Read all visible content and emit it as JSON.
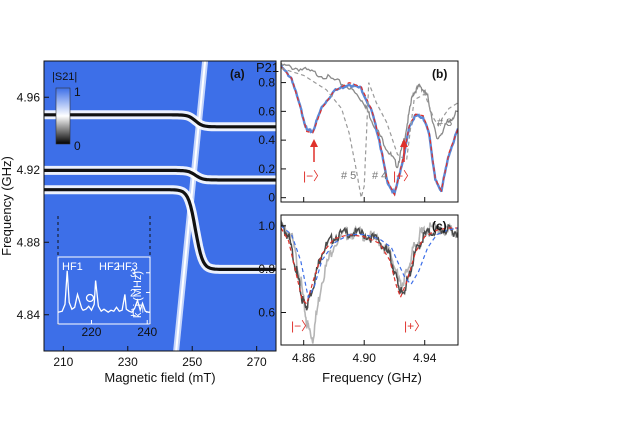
{
  "chart_data": [
    {
      "panel": "(a)",
      "type": "heatmap",
      "xlabel": "Magnetic field (mT)",
      "ylabel": "Frequency (GHz)",
      "xlim": [
        204,
        276
      ],
      "ylim": [
        4.82,
        4.98
      ],
      "xticks": [
        "210",
        "230",
        "250",
        "270"
      ],
      "yticks": [
        "4.84",
        "4.88",
        "4.92",
        "4.96"
      ],
      "colorbar": {
        "label": "|S21|",
        "max_label": "1",
        "min_label": "0",
        "colors": [
          "#3d6fe8",
          "#ffffff",
          "#000000"
        ]
      },
      "features": [
        {
          "name": "mode",
          "f0": 4.947,
          "couples_at_field": 251,
          "gap": 0.0015
        },
        {
          "name": "mode",
          "f0": 4.917,
          "couples_at_field": 251,
          "gap": 0.0012
        },
        {
          "name": "mode",
          "f0": 4.887,
          "couples_at_field": 251,
          "gap": 0.01
        }
      ],
      "spin_line": {
        "field_at_4_82": 245,
        "field_at_4_98": 254
      },
      "inset": {
        "peak_labels": [
          "HF1",
          "HF2",
          "HF3"
        ],
        "xticks": [
          "220",
          "240"
        ],
        "yticks": [
          "1",
          "2",
          "3"
        ],
        "ylabel": "k_i (MHz)",
        "xlim": [
          208,
          241
        ],
        "ylim": [
          0.4,
          3.8
        ],
        "x": [
          208,
          209.5,
          210.5,
          211.3,
          212,
          213,
          214,
          215,
          216.5,
          217,
          218,
          219,
          220,
          221,
          221.5,
          222.5,
          223.5,
          224.5,
          226,
          227,
          228,
          229,
          230,
          231,
          232,
          232.5,
          233.5,
          234.5,
          235.5,
          236.5,
          237.5,
          238.3,
          239.3,
          240.5,
          241
        ],
        "y": [
          1.0,
          1.05,
          1.4,
          3.1,
          1.5,
          1.15,
          1.25,
          1.9,
          1.2,
          1.1,
          1.15,
          1.3,
          1.1,
          1.4,
          2.6,
          1.3,
          1.05,
          1.15,
          1.0,
          1.1,
          1.05,
          1.25,
          1.05,
          1.1,
          1.9,
          1.15,
          1.05,
          1.0,
          1.2,
          1.6,
          1.1,
          1.45,
          1.05,
          1.0,
          1.0
        ]
      }
    },
    {
      "panel": "(b)",
      "type": "line",
      "ylabel": "P21",
      "xlim": [
        4.845,
        4.962
      ],
      "ylim": [
        -0.03,
        0.95
      ],
      "yticks": [
        "0",
        "0.2",
        "0.4",
        "0.6",
        "0.8"
      ],
      "annotations": {
        "minus": "|−〉",
        "plus": "|+〉",
        "g5": "# 5",
        "g4": "# 4",
        "g3": "# 3"
      },
      "series": [
        {
          "style": "gray-noisy",
          "x": [
            4.845,
            4.86,
            4.875,
            4.89,
            4.9,
            4.905,
            4.915,
            4.922,
            4.927,
            4.932,
            4.937,
            4.942,
            4.948,
            4.955,
            4.962
          ],
          "y": [
            0.92,
            0.89,
            0.84,
            0.77,
            0.66,
            0.54,
            0.34,
            0.22,
            0.43,
            0.72,
            0.78,
            0.7,
            0.4,
            0.52,
            0.6
          ]
        },
        {
          "style": "blue",
          "x": [
            4.845,
            4.852,
            4.858,
            4.862,
            4.866,
            4.872,
            4.88,
            4.89,
            4.898,
            4.905,
            4.91,
            4.915,
            4.92,
            4.926,
            4.93,
            4.934,
            4.939,
            4.943,
            4.947,
            4.951,
            4.956,
            4.962
          ],
          "y": [
            0.91,
            0.83,
            0.62,
            0.47,
            0.46,
            0.63,
            0.74,
            0.79,
            0.76,
            0.6,
            0.4,
            0.12,
            0.02,
            0.28,
            0.5,
            0.57,
            0.56,
            0.44,
            0.12,
            0.05,
            0.3,
            0.48
          ]
        },
        {
          "style": "red-dash",
          "x": [
            4.845,
            4.852,
            4.858,
            4.862,
            4.866,
            4.872,
            4.88,
            4.89,
            4.898,
            4.905,
            4.91,
            4.915,
            4.92,
            4.926,
            4.93,
            4.934,
            4.939,
            4.943,
            4.947,
            4.951,
            4.956,
            4.962
          ],
          "y": [
            0.91,
            0.83,
            0.62,
            0.46,
            0.45,
            0.62,
            0.74,
            0.8,
            0.77,
            0.61,
            0.41,
            0.13,
            0.02,
            0.29,
            0.51,
            0.58,
            0.57,
            0.45,
            0.13,
            0.05,
            0.31,
            0.48
          ]
        },
        {
          "style": "gray-dash",
          "x": [
            4.845,
            4.86,
            4.875,
            4.885,
            4.89,
            4.895,
            4.898,
            4.9,
            4.903,
            4.908,
            4.915,
            4.922,
            4.928,
            4.933,
            4.94,
            4.946,
            4.949,
            4.952,
            4.956,
            4.962
          ],
          "y": [
            0.9,
            0.85,
            0.75,
            0.62,
            0.45,
            0.18,
            0.0,
            0.08,
            0.8,
            0.66,
            0.52,
            0.3,
            0.26,
            0.68,
            0.72,
            0.55,
            0.5,
            0.56,
            0.62,
            0.66
          ]
        }
      ]
    },
    {
      "panel": "(c)",
      "type": "line",
      "xlabel": "Frequency (GHz)",
      "xlim": [
        4.845,
        4.962
      ],
      "ylim": [
        0.45,
        1.05
      ],
      "xticks": [
        "4.86",
        "4.90",
        "4.94"
      ],
      "yticks": [
        "0.6",
        "0.8",
        "1.0"
      ],
      "annotations": {
        "minus": "|−〉",
        "plus": "|+〉"
      },
      "series": [
        {
          "style": "lightgray-noisy",
          "x": [
            4.845,
            4.852,
            4.858,
            4.862,
            4.866,
            4.872,
            4.88,
            4.89,
            4.9,
            4.91,
            4.918,
            4.924,
            4.928,
            4.933,
            4.938,
            4.945,
            4.955,
            4.962
          ],
          "y": [
            1.0,
            0.95,
            0.75,
            0.55,
            0.48,
            0.75,
            0.92,
            0.97,
            0.96,
            0.93,
            0.86,
            0.72,
            0.78,
            0.9,
            0.97,
            0.99,
            0.98,
            0.97
          ]
        },
        {
          "style": "darkgray-noisy",
          "x": [
            4.845,
            4.85,
            4.855,
            4.859,
            4.862,
            4.866,
            4.872,
            4.88,
            4.89,
            4.9,
            4.91,
            4.917,
            4.922,
            4.925,
            4.929,
            4.934,
            4.94,
            4.948,
            4.955,
            4.962
          ],
          "y": [
            1.0,
            0.95,
            0.8,
            0.66,
            0.63,
            0.72,
            0.88,
            0.95,
            0.97,
            0.96,
            0.93,
            0.86,
            0.74,
            0.68,
            0.75,
            0.88,
            0.96,
            0.98,
            0.98,
            0.97
          ]
        },
        {
          "style": "red-dash",
          "x": [
            4.845,
            4.85,
            4.855,
            4.859,
            4.862,
            4.866,
            4.872,
            4.88,
            4.89,
            4.9,
            4.91,
            4.917,
            4.921,
            4.924,
            4.928,
            4.934,
            4.94,
            4.948,
            4.955,
            4.962
          ],
          "y": [
            0.99,
            0.93,
            0.78,
            0.66,
            0.64,
            0.74,
            0.87,
            0.94,
            0.96,
            0.95,
            0.92,
            0.84,
            0.73,
            0.67,
            0.74,
            0.88,
            0.95,
            0.98,
            0.99,
            0.99
          ]
        },
        {
          "style": "blue-dash",
          "x": [
            4.845,
            4.852,
            4.858,
            4.863,
            4.867,
            4.872,
            4.88,
            4.89,
            4.9,
            4.91,
            4.918,
            4.923,
            4.927,
            4.931,
            4.936,
            4.942,
            4.948,
            4.955,
            4.962
          ],
          "y": [
            1.0,
            0.96,
            0.84,
            0.67,
            0.72,
            0.84,
            0.92,
            0.96,
            0.96,
            0.94,
            0.9,
            0.82,
            0.76,
            0.73,
            0.79,
            0.9,
            0.96,
            0.98,
            0.99
          ]
        }
      ]
    }
  ]
}
